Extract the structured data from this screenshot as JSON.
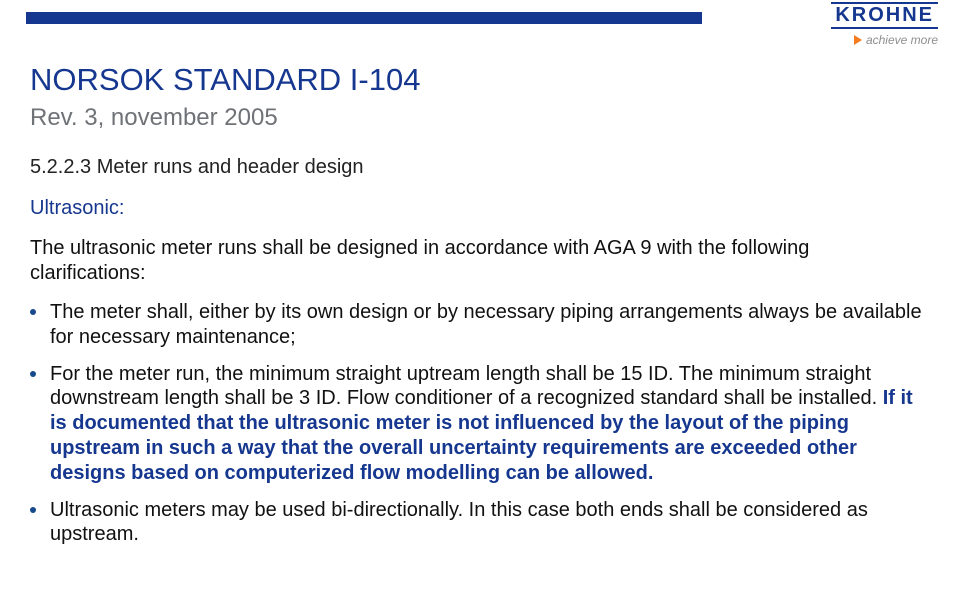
{
  "brand": {
    "name": "KROHNE",
    "tagline": "achieve more",
    "logo_color": "#16378f",
    "triangle_color": "#f57c1f"
  },
  "stripe_color": "#16378f",
  "colors": {
    "title": "#16378f",
    "subtitle": "#6f7276",
    "section_heading": "#16378f",
    "body_text": "#111111",
    "highlight": "#16378f",
    "bullet": "#174a8c"
  },
  "heading": {
    "title": "NORSOK STANDARD I-104",
    "subtitle": "Rev. 3, november 2005"
  },
  "section": {
    "number": "5.2.2.3 Meter runs and header design",
    "subheading": "Ultrasonic:",
    "intro": "The ultrasonic meter runs shall be designed in accordance with AGA 9 with the following clarifications:",
    "bullets": [
      {
        "pre": "The meter shall, either by its own design or by necessary piping arrangements always be available for necessary maintenance;",
        "hl": "",
        "post": ""
      },
      {
        "pre": "For the meter run, the minimum straight uptream length shall be 15 ID. The minimum straight downstream length shall be 3 ID. Flow conditioner of a recognized standard shall be installed. ",
        "hl": "If it is documented that the ultrasonic meter is not influenced by the layout of the piping upstream in such a way that the overall uncertainty requirements are exceeded other designs based on computerized flow modelling can be allowed.",
        "post": ""
      },
      {
        "pre": "Ultrasonic meters may be used bi-directionally.",
        "hl": "",
        "post": "  In this case both ends shall be considered as upstream."
      }
    ]
  }
}
